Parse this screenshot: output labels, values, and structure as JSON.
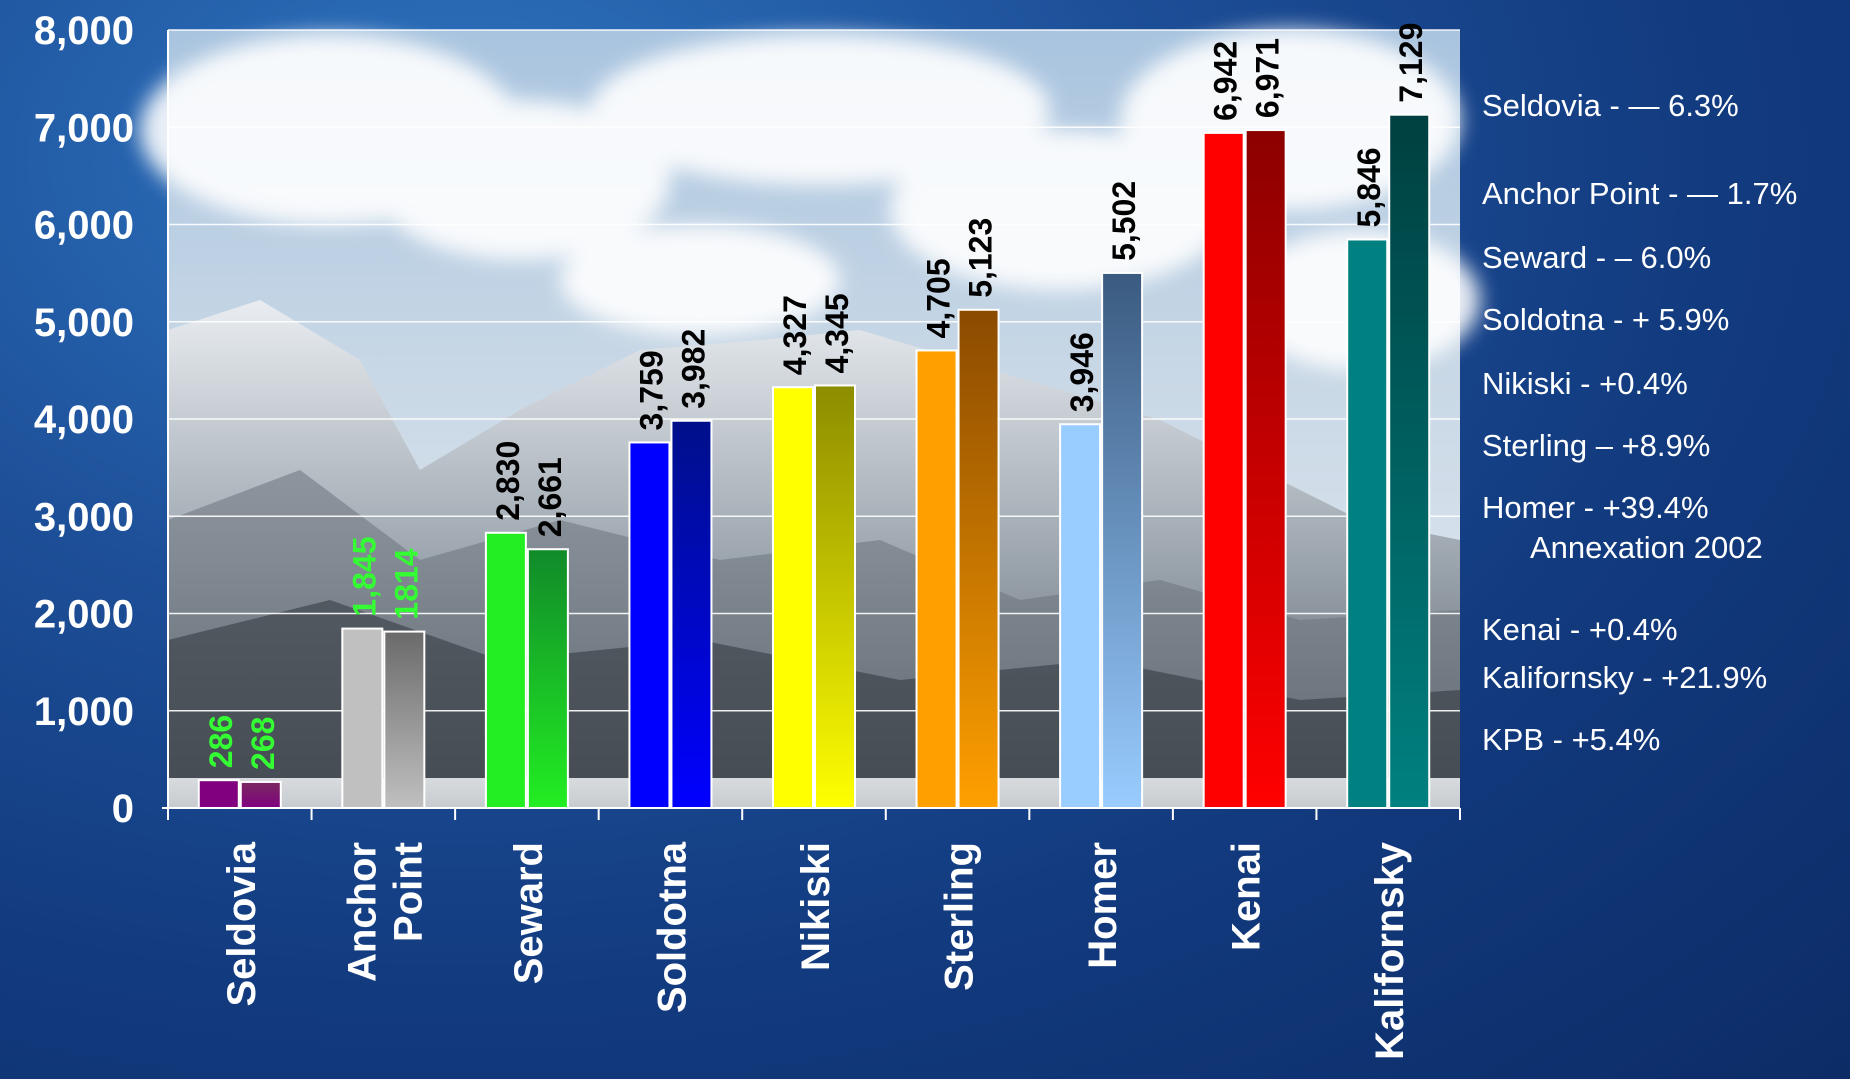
{
  "chart_data": {
    "type": "bar",
    "ylim": [
      0,
      8000
    ],
    "yticks": [
      "0",
      "1,000",
      "2,000",
      "3,000",
      "4,000",
      "5,000",
      "6,000",
      "7,000",
      "8,000"
    ],
    "categories": [
      {
        "lines": [
          "Seldovia"
        ]
      },
      {
        "lines": [
          "Anchor",
          "Point"
        ]
      },
      {
        "lines": [
          "Seward"
        ]
      },
      {
        "lines": [
          "Soldotna"
        ]
      },
      {
        "lines": [
          "Nikiski"
        ]
      },
      {
        "lines": [
          "Sterling"
        ]
      },
      {
        "lines": [
          "Homer"
        ]
      },
      {
        "lines": [
          "Kenai"
        ]
      },
      {
        "lines": [
          "Kalifornsky"
        ]
      }
    ],
    "series": [
      {
        "values": [
          286,
          1845,
          2830,
          3759,
          4327,
          4705,
          3946,
          6942,
          5846
        ],
        "labels": [
          "286",
          "1,845",
          "2,830",
          "3,759",
          "4,327",
          "4,705",
          "3,946",
          "6,942",
          "5,846"
        ]
      },
      {
        "values": [
          268,
          1814,
          2661,
          3982,
          4345,
          5123,
          5502,
          6971,
          7129
        ],
        "labels": [
          "268",
          "1814",
          "2,661",
          "3,982",
          "4,345",
          "5,123",
          "5,502",
          "6,971",
          "7,129"
        ]
      }
    ],
    "bar_colors": [
      [
        "#800080",
        "#7a2a60"
      ],
      [
        "#c0c0c0",
        "#6a6a6a"
      ],
      [
        "#22ee22",
        "#118a2a"
      ],
      [
        "#0000ff",
        "#00108a"
      ],
      [
        "#ffff00",
        "#8c8c00"
      ],
      [
        "#ffa000",
        "#8a4a00"
      ],
      [
        "#99ccff",
        "#3a5a80"
      ],
      [
        "#ff0000",
        "#8c0000"
      ],
      [
        "#008080",
        "#004040"
      ]
    ],
    "value_label_colors": [
      "#33ff33",
      "#33ff33",
      "#000000",
      "#000000",
      "#000000",
      "#000000",
      "#000000",
      "#000000",
      "#000000"
    ],
    "grid": true
  },
  "notes": [
    {
      "text": "Seldovia - — 6.3%"
    },
    {
      "text": "Anchor Point - — 1.7%"
    },
    {
      "text": "Seward - – 6.0%"
    },
    {
      "text": "Soldotna - + 5.9%"
    },
    {
      "text": "Nikiski - +0.4%"
    },
    {
      "text": "Sterling – +8.9%"
    },
    {
      "text": "Homer - +39.4%",
      "sub": "Annexation 2002"
    },
    {
      "text": "Kenai - +0.4%"
    },
    {
      "text": "Kalifornsky - +21.9%"
    },
    {
      "text": "KPB - +5.4%"
    }
  ]
}
